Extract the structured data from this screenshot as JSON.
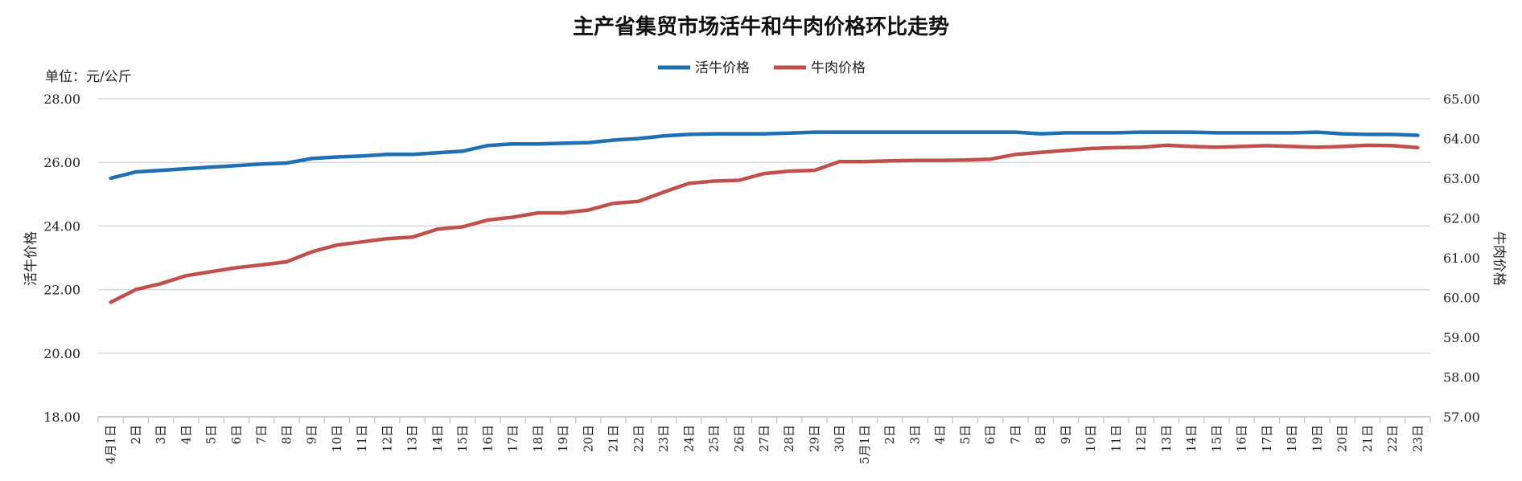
{
  "chart_data": {
    "type": "line",
    "title": "主产省集贸市场活牛和牛肉价格环比走势",
    "unit_label": "单位：元/公斤",
    "y_left_label": "活牛价格",
    "y_right_label": "牛肉价格",
    "y_left_lim": [
      18,
      28
    ],
    "y_left_ticks": [
      "18.00",
      "20.00",
      "22.00",
      "24.00",
      "26.00",
      "28.00"
    ],
    "y_right_lim": [
      57,
      65
    ],
    "y_right_ticks": [
      "57.00",
      "58.00",
      "59.00",
      "60.00",
      "61.00",
      "62.00",
      "63.00",
      "64.00",
      "65.00"
    ],
    "grid": true,
    "legend_position": "top-center",
    "categories": [
      "4月1日",
      "2日",
      "3日",
      "4日",
      "5日",
      "6日",
      "7日",
      "8日",
      "9日",
      "10日",
      "11日",
      "12日",
      "13日",
      "14日",
      "15日",
      "16日",
      "17日",
      "18日",
      "19日",
      "20日",
      "21日",
      "22日",
      "23日",
      "24日",
      "25日",
      "26日",
      "27日",
      "28日",
      "29日",
      "30日",
      "5月1日",
      "2日",
      "3日",
      "4日",
      "5日",
      "6日",
      "7日",
      "8日",
      "9日",
      "10日",
      "11日",
      "12日",
      "13日",
      "14日",
      "15日",
      "16日",
      "17日",
      "18日",
      "19日",
      "20日",
      "21日",
      "22日",
      "23日"
    ],
    "series": [
      {
        "name": "活牛价格",
        "axis": "left",
        "color": "#1f6fb5",
        "values": [
          25.5,
          25.7,
          25.75,
          25.8,
          25.85,
          25.9,
          25.95,
          25.98,
          26.12,
          26.17,
          26.2,
          26.25,
          26.25,
          26.3,
          26.35,
          26.53,
          26.58,
          26.58,
          26.6,
          26.62,
          26.7,
          26.75,
          26.83,
          26.88,
          26.9,
          26.9,
          26.9,
          26.92,
          26.95,
          26.95,
          26.95,
          26.95,
          26.95,
          26.95,
          26.95,
          26.95,
          26.95,
          26.9,
          26.93,
          26.93,
          26.93,
          26.95,
          26.95,
          26.95,
          26.93,
          26.93,
          26.93,
          26.93,
          26.95,
          26.9,
          26.88,
          26.88,
          26.85
        ]
      },
      {
        "name": "牛肉价格",
        "axis": "right",
        "color": "#c0504d",
        "values": [
          59.88,
          60.2,
          60.35,
          60.55,
          60.65,
          60.75,
          60.82,
          60.9,
          61.15,
          61.32,
          61.4,
          61.48,
          61.52,
          61.72,
          61.78,
          61.95,
          62.02,
          62.13,
          62.13,
          62.2,
          62.37,
          62.42,
          62.65,
          62.87,
          62.93,
          62.95,
          63.12,
          63.18,
          63.2,
          63.42,
          63.42,
          63.44,
          63.45,
          63.45,
          63.46,
          63.48,
          63.6,
          63.65,
          63.7,
          63.75,
          63.77,
          63.78,
          63.83,
          63.8,
          63.78,
          63.8,
          63.82,
          63.8,
          63.78,
          63.8,
          63.83,
          63.82,
          63.77
        ]
      }
    ]
  }
}
